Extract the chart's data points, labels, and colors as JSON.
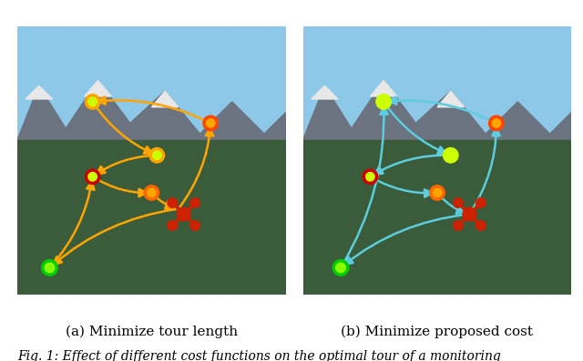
{
  "caption_a": "(a) Minimize tour length",
  "caption_b": "(b) Minimize proposed cost",
  "fig_caption": "Fig. 1: Effect of different cost functions on the optimal tour of a monitoring",
  "caption_fontsize": 11,
  "fig_caption_fontsize": 10,
  "bg_color": "#ffffff",
  "image_left_path": null,
  "image_right_path": null,
  "fig_width": 6.4,
  "fig_height": 3.97
}
